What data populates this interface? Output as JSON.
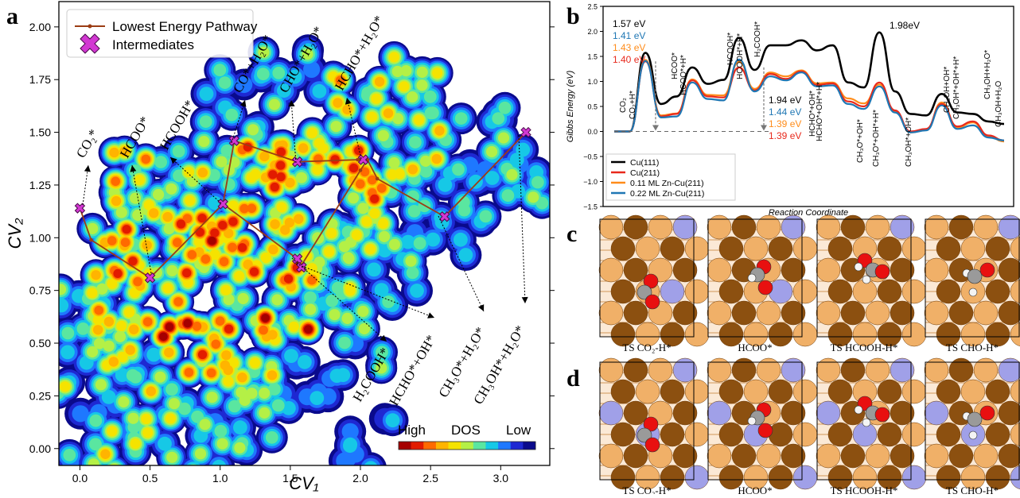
{
  "panels": {
    "a": "a",
    "b": "b",
    "c": "c",
    "d": "d"
  },
  "chart_data": [
    {
      "id": "a",
      "type": "heatmap",
      "xlabel": "CV₁",
      "ylabel": "CV₂",
      "xlim": [
        -0.15,
        3.35
      ],
      "ylim": [
        -0.08,
        2.12
      ],
      "xticks": [
        "0.0",
        "0.5",
        "1.0",
        "1.5",
        "2.0",
        "2.5",
        "3.0"
      ],
      "yticks": [
        "0.00",
        "0.25",
        "0.50",
        "0.75",
        "1.00",
        "1.25",
        "1.50",
        "1.75",
        "2.00"
      ],
      "legend": {
        "placement": "top-left",
        "entries": [
          "Lowest Energy Pathway",
          "Intermediates"
        ]
      },
      "colorbar": {
        "labels": [
          "High",
          "DOS",
          "Low"
        ],
        "colors": [
          "#a50000",
          "#e21b00",
          "#ff6a00",
          "#ffb400",
          "#f5e300",
          "#b4f046",
          "#5ae6a0",
          "#16c8e6",
          "#1e78ff",
          "#1e28d2",
          "#0a0a8c"
        ]
      },
      "pathway": [
        [
          0.0,
          1.14
        ],
        [
          0.08,
          0.99
        ],
        [
          0.5,
          0.81
        ],
        [
          1.02,
          1.16
        ],
        [
          1.1,
          1.46
        ],
        [
          1.55,
          1.36
        ],
        [
          1.98,
          1.37
        ],
        [
          2.05,
          1.37
        ],
        [
          2.12,
          1.28
        ],
        [
          2.6,
          1.1
        ],
        [
          3.18,
          1.5
        ]
      ],
      "branch": [
        [
          1.02,
          1.16
        ],
        [
          1.55,
          0.9
        ],
        [
          1.58,
          0.87
        ],
        [
          2.0,
          1.32
        ],
        [
          2.05,
          1.37
        ]
      ],
      "intermediates": [
        {
          "x": 0.0,
          "y": 1.14
        },
        {
          "x": 0.5,
          "y": 0.81
        },
        {
          "x": 1.02,
          "y": 1.16
        },
        {
          "x": 1.1,
          "y": 1.46
        },
        {
          "x": 1.55,
          "y": 1.36
        },
        {
          "x": 2.02,
          "y": 1.37
        },
        {
          "x": 1.55,
          "y": 0.9
        },
        {
          "x": 1.58,
          "y": 0.86
        },
        {
          "x": 2.6,
          "y": 1.1
        },
        {
          "x": 3.18,
          "y": 1.5
        }
      ],
      "annotations": [
        {
          "label": "CO₂*"
        },
        {
          "label": "HCOO*"
        },
        {
          "label": "HCOOH*"
        },
        {
          "label": "CO*+H₂O*"
        },
        {
          "label": "CHO*+H₂O*"
        },
        {
          "label": "HCHO*+H₂O*"
        },
        {
          "label": "H₂COOH*"
        },
        {
          "label": "HCHO*+OH*"
        },
        {
          "label": "CH₃O*+H₂O*"
        },
        {
          "label": "CH₃OH*+H₂O*"
        }
      ]
    },
    {
      "id": "b",
      "type": "line",
      "xlabel": "Reaction Coordinate",
      "ylabel": "Gibbs Energy (eV)",
      "ylim": [
        -1.5,
        2.5
      ],
      "yticks": [
        "−1.5",
        "−1.0",
        "−0.5",
        "0.0",
        "0.5",
        "1.0",
        "1.5",
        "2.0",
        "2.5"
      ],
      "legend": {
        "placement": "bottom-left"
      },
      "series": [
        {
          "name": "Cu(111)",
          "color": "#000000",
          "values": [
            0.0,
            0.0,
            1.57,
            0.55,
            0.7,
            1.28,
            0.95,
            1.03,
            1.87,
            1.23,
            1.72,
            1.72,
            1.82,
            1.62,
            1.72,
            0.98,
            0.88,
            1.98,
            0.8,
            0.35,
            0.32,
            0.75,
            0.38,
            0.35,
            0.2,
            0.15
          ]
        },
        {
          "name": "Cu(211)",
          "color": "#e8291c",
          "values": [
            0.0,
            0.0,
            1.4,
            0.3,
            0.35,
            1.02,
            0.7,
            0.68,
            1.28,
            0.82,
            1.15,
            1.05,
            1.2,
            0.93,
            0.96,
            0.6,
            0.5,
            0.98,
            0.42,
            0.0,
            0.05,
            0.55,
            0.1,
            0.2,
            -0.08,
            -0.18
          ]
        },
        {
          "name": "0.11 ML Zn-Cu(211)",
          "color": "#ff8c1a",
          "values": [
            0.0,
            0.0,
            1.43,
            0.32,
            0.36,
            1.04,
            0.73,
            0.72,
            1.39,
            0.85,
            1.18,
            1.1,
            1.22,
            0.96,
            0.98,
            0.66,
            0.56,
            0.94,
            0.4,
            -0.02,
            0.03,
            0.58,
            0.08,
            0.18,
            -0.1,
            -0.2
          ]
        },
        {
          "name": "0.22 ML Zn-Cu(211)",
          "color": "#1f77b4",
          "values": [
            0.0,
            0.0,
            1.41,
            0.28,
            0.3,
            0.98,
            0.65,
            0.62,
            1.44,
            0.8,
            1.1,
            1.02,
            1.18,
            0.9,
            0.92,
            0.55,
            0.45,
            0.9,
            0.38,
            -0.02,
            0.02,
            0.52,
            0.05,
            0.12,
            -0.12,
            -0.18
          ]
        }
      ],
      "barriers_first": [
        "1.57 eV",
        "1.41 eV",
        "1.43 eV",
        "1.40 eV"
      ],
      "barriers_second": [
        "1.94 eV",
        "1.44 eV",
        "1.39 eV",
        "1.39 eV"
      ],
      "peak_label": "1.98eV",
      "state_labels": [
        {
          "label": "CO₂"
        },
        {
          "label": "CO₂+H*"
        },
        {
          "label": "HCOO*"
        },
        {
          "label": "HCOO*+H*"
        },
        {
          "label": "HCOOH*"
        },
        {
          "label": "HCOOH*+H*"
        },
        {
          "label": "H₂COOH*"
        },
        {
          "label": "HCHO*+OH*"
        },
        {
          "label": "HCHO*+OH*+H*"
        },
        {
          "label": "CH₃O*+OH*"
        },
        {
          "label": "CH₃O*+OH*+H*"
        },
        {
          "label": "CH₃OH*+OH*"
        },
        {
          "label": "CH₃OH+OH*"
        },
        {
          "label": "CH₃OH*+OH*+H*"
        },
        {
          "label": "CH₃OH+H₂O*"
        },
        {
          "label": "CH₃OH+H₂O"
        }
      ]
    }
  ],
  "structures": {
    "c": [
      {
        "caption": "TS CO₂-H*",
        "zn": false
      },
      {
        "caption": "HCOO*",
        "zn": false
      },
      {
        "caption": "TS HCOOH-H*",
        "zn": false
      },
      {
        "caption": "TS CHO-H*",
        "zn": false
      }
    ],
    "d": [
      {
        "caption": "TS CO₂-H*",
        "zn": true
      },
      {
        "caption": "HCOO*",
        "zn": true
      },
      {
        "caption": "TS HCOOH-H*",
        "zn": true
      },
      {
        "caption": "TS CHO-H*",
        "zn": true
      }
    ]
  },
  "colors": {
    "cu_light": "#f0b068",
    "cu_dark": "#8c5010",
    "zn": "#a0a0e8",
    "oxygen": "#e81010",
    "carbon": "#9a9a9a",
    "hydrogen": "#f4f4f4",
    "pathway": "#9b3d14",
    "marker": "#d238d2"
  }
}
